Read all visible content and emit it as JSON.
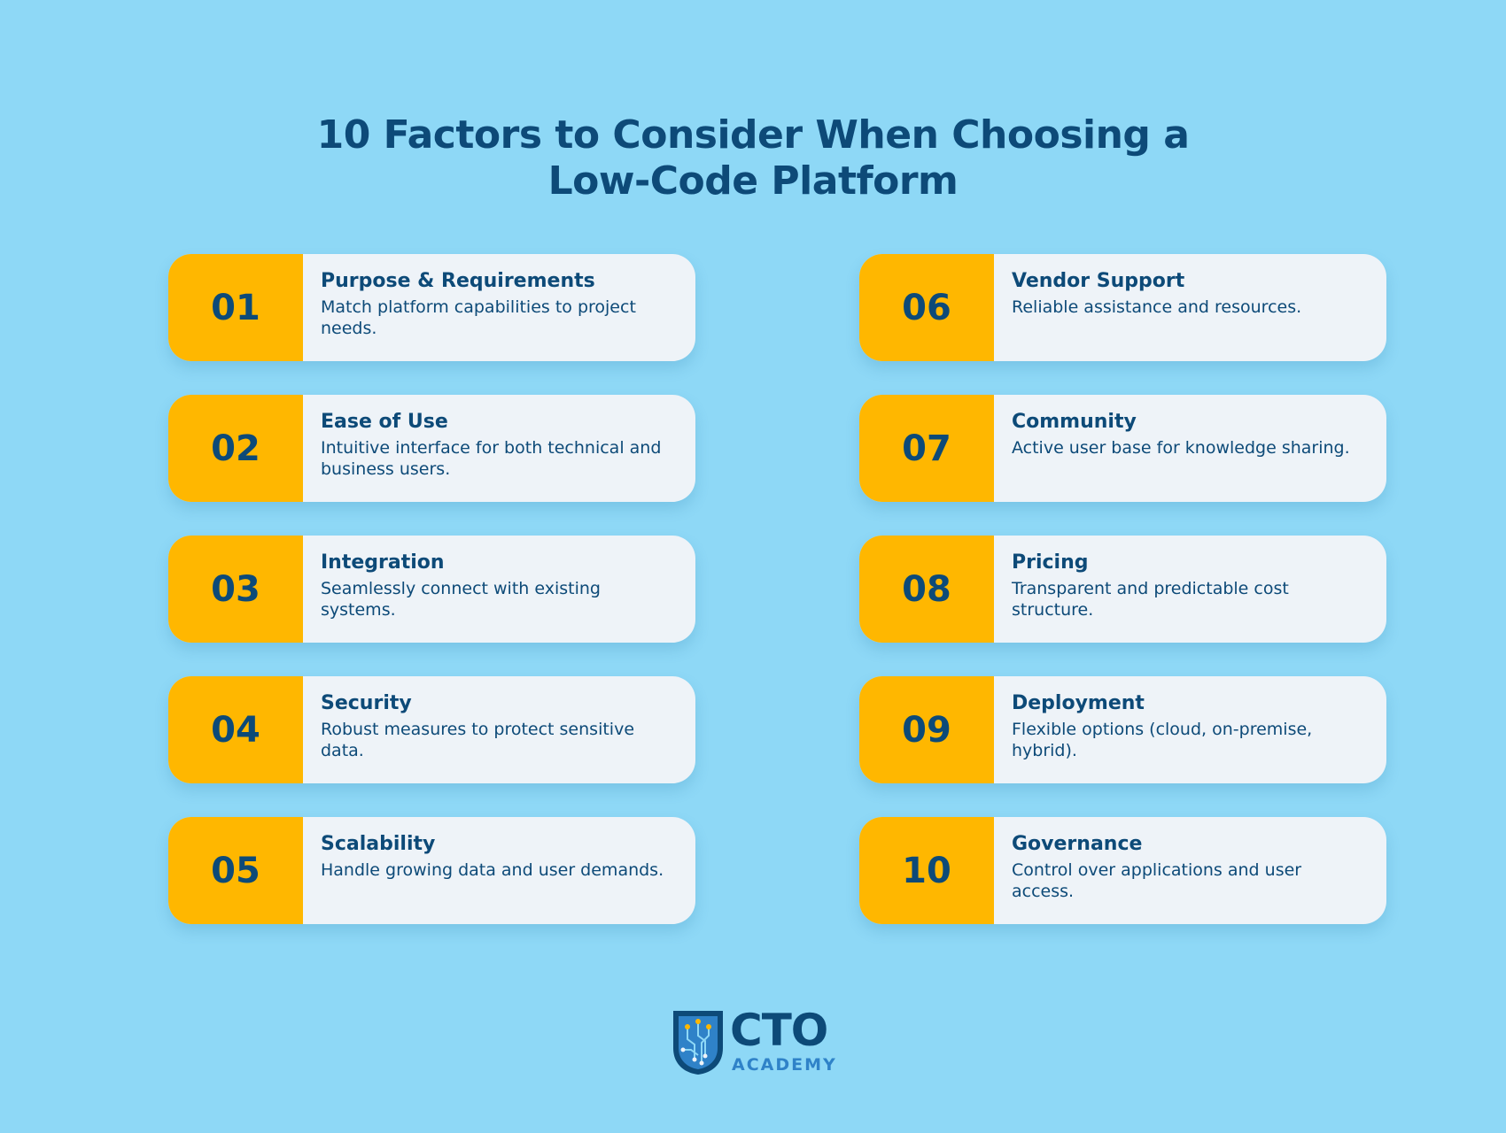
{
  "page": {
    "title_line1": "10 Factors to Consider When Choosing a",
    "title_line2": "Low-Code Platform"
  },
  "colors": {
    "background": "#8ed8f6",
    "accent": "#ffb700",
    "card": "#eef3f8",
    "text": "#0d4a78",
    "logo_secondary": "#2f82c8"
  },
  "factors": [
    {
      "number": "01",
      "title": "Purpose & Requirements",
      "description": "Match platform capabilities to project needs."
    },
    {
      "number": "02",
      "title": "Ease of Use",
      "description": "Intuitive interface for both technical and business users."
    },
    {
      "number": "03",
      "title": "Integration",
      "description": "Seamlessly connect with existing systems."
    },
    {
      "number": "04",
      "title": "Security",
      "description": "Robust measures to protect sensitive data."
    },
    {
      "number": "05",
      "title": "Scalability",
      "description": "Handle growing data and user demands."
    },
    {
      "number": "06",
      "title": "Vendor Support",
      "description": "Reliable assistance and resources."
    },
    {
      "number": "07",
      "title": "Community",
      "description": "Active user base for knowledge sharing."
    },
    {
      "number": "08",
      "title": "Pricing",
      "description": "Transparent and predictable cost structure."
    },
    {
      "number": "09",
      "title": "Deployment",
      "description": "Flexible options (cloud, on-premise, hybrid)."
    },
    {
      "number": "10",
      "title": "Governance",
      "description": "Control over applications and user access."
    }
  ],
  "logo": {
    "icon": "shield-circuit-icon",
    "name": "CTO",
    "subtitle": "ACADEMY"
  }
}
